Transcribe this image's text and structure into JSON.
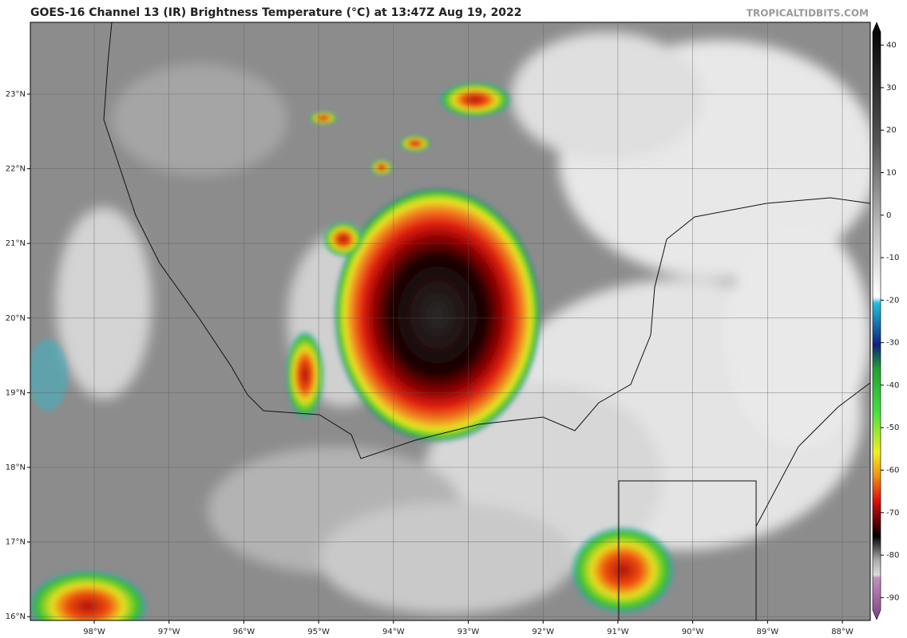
{
  "header": {
    "title": "GOES-16 Channel 13 (IR) Brightness Temperature (°C) at 13:47Z Aug 19, 2022",
    "source": "TROPICALTIDBITS.COM"
  },
  "map": {
    "lat_ticks": [
      {
        "value": 23,
        "label": "23°N"
      },
      {
        "value": 22,
        "label": "22°N"
      },
      {
        "value": 21,
        "label": "21°N"
      },
      {
        "value": 20,
        "label": "20°N"
      },
      {
        "value": 19,
        "label": "19°N"
      },
      {
        "value": 18,
        "label": "18°N"
      },
      {
        "value": 17,
        "label": "17°N"
      },
      {
        "value": 16,
        "label": "16°N"
      }
    ],
    "lon_ticks": [
      {
        "value": -98,
        "label": "98°W"
      },
      {
        "value": -97,
        "label": "97°W"
      },
      {
        "value": -96,
        "label": "96°W"
      },
      {
        "value": -95,
        "label": "95°W"
      },
      {
        "value": -94,
        "label": "94°W"
      },
      {
        "value": -93,
        "label": "93°W"
      },
      {
        "value": -92,
        "label": "92°W"
      },
      {
        "value": -91,
        "label": "91°W"
      },
      {
        "value": -90,
        "label": "90°W"
      },
      {
        "value": -89,
        "label": "89°W"
      },
      {
        "value": -88,
        "label": "88°W"
      }
    ]
  },
  "colorbar": {
    "lim": [
      45,
      -95
    ],
    "ticks": [
      40,
      30,
      20,
      10,
      0,
      -10,
      -20,
      -30,
      -40,
      -50,
      -60,
      -70,
      -80,
      -90
    ]
  }
}
